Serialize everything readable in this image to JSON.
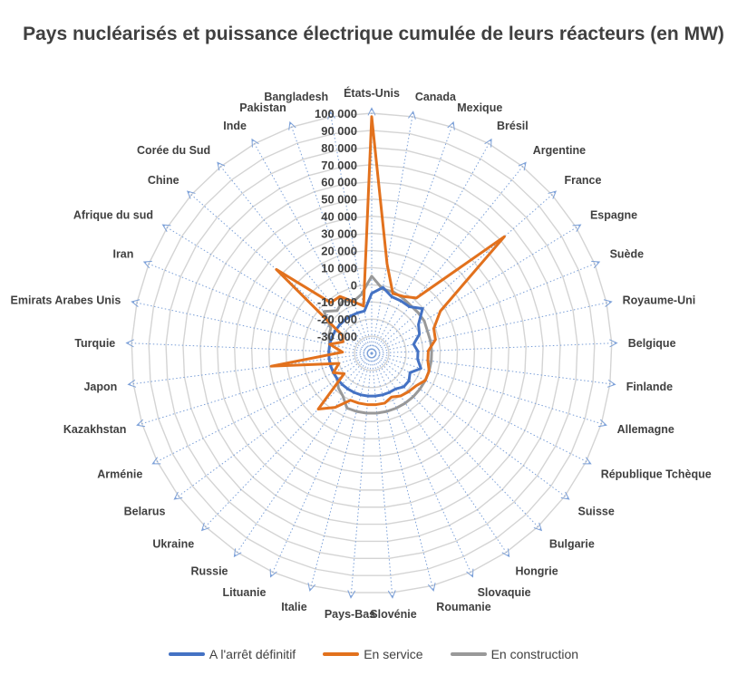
{
  "chart_data": {
    "type": "radar",
    "title": "Pays nucléarisés et puissance électrique cumulée de leurs réacteurs (en MW)",
    "categories": [
      "États-Unis",
      "Canada",
      "Mexique",
      "Brésil",
      "Argentine",
      "France",
      "Espagne",
      "Suède",
      "Royaume-Uni",
      "Belgique",
      "Finlande",
      "Allemagne",
      "République Tchèque",
      "Suisse",
      "Bulgarie",
      "Hongrie",
      "Slovaquie",
      "Roumanie",
      "Slovénie",
      "Pays-Bas",
      "Italie",
      "Lituanie",
      "Russie",
      "Ukraine",
      "Belarus",
      "Arménie",
      "Kazakhstan",
      "Japon",
      "Turquie",
      "Emirats Arabes Unis",
      "Iran",
      "Afrique du sud",
      "Chine",
      "Corée du Sud",
      "Inde",
      "Pakistan",
      "Bangladesh"
    ],
    "rlim": [
      -40000,
      100000
    ],
    "ticks": [
      -30000,
      -20000,
      -10000,
      0,
      10000,
      20000,
      30000,
      40000,
      50000,
      60000,
      70000,
      80000,
      90000,
      100000
    ],
    "tick_labels": [
      "-30 000",
      "-20 000",
      "-10 000",
      "0",
      "10 000",
      "20 000",
      "30 000",
      "40 000",
      "50 000",
      "60 000",
      "70 000",
      "80 000",
      "90 000",
      "100 000"
    ],
    "series": [
      {
        "name": "A l'arrêt définitif",
        "color": "#4472C4",
        "values": [
          -5000,
          -1000,
          -5000,
          -5000,
          -5000,
          -500,
          -8000,
          -10000,
          -15000,
          -13000,
          -13000,
          -10000,
          -15000,
          -13000,
          -13000,
          -15000,
          -15000,
          -15000,
          -15000,
          -15000,
          -15000,
          -15000,
          -15000,
          -15000,
          -15000,
          -15000,
          -15000,
          -15000,
          -15000,
          -15000,
          -15000,
          -15000,
          -15000,
          -15000,
          -15000,
          -15000,
          -15000
        ]
      },
      {
        "name": "En service",
        "color": "#E2711D",
        "values": [
          98000,
          13000,
          -3000,
          -2000,
          1500,
          63000,
          7000,
          -1000,
          -2000,
          -7000,
          -7000,
          -5000,
          -5000,
          -8000,
          -9000,
          -10000,
          -12000,
          -10000,
          -10000,
          -10000,
          -10000,
          -10000,
          -2000,
          5000,
          -20000,
          -15000,
          -20000,
          19000,
          -23000,
          -15000,
          -22000,
          -20000,
          34000,
          -2000,
          -2000,
          -8000,
          -12000
        ]
      },
      {
        "name": "En construction",
        "color": "#999999",
        "values": [
          5000,
          -2000,
          -2000,
          -3000,
          -4000,
          -4000,
          -4000,
          -5000,
          -5000,
          -5000,
          -5000,
          -5000,
          -5000,
          -5000,
          -5000,
          -5000,
          -5000,
          -5000,
          -5000,
          -5000,
          -5000,
          -5000,
          -10000,
          -12000,
          -15000,
          -15000,
          -15000,
          -15000,
          -15000,
          -15000,
          -13000,
          -12000,
          -3000,
          -8000,
          -5000,
          -8000,
          -5000
        ]
      }
    ],
    "legend_position": "bottom",
    "grid": true
  }
}
